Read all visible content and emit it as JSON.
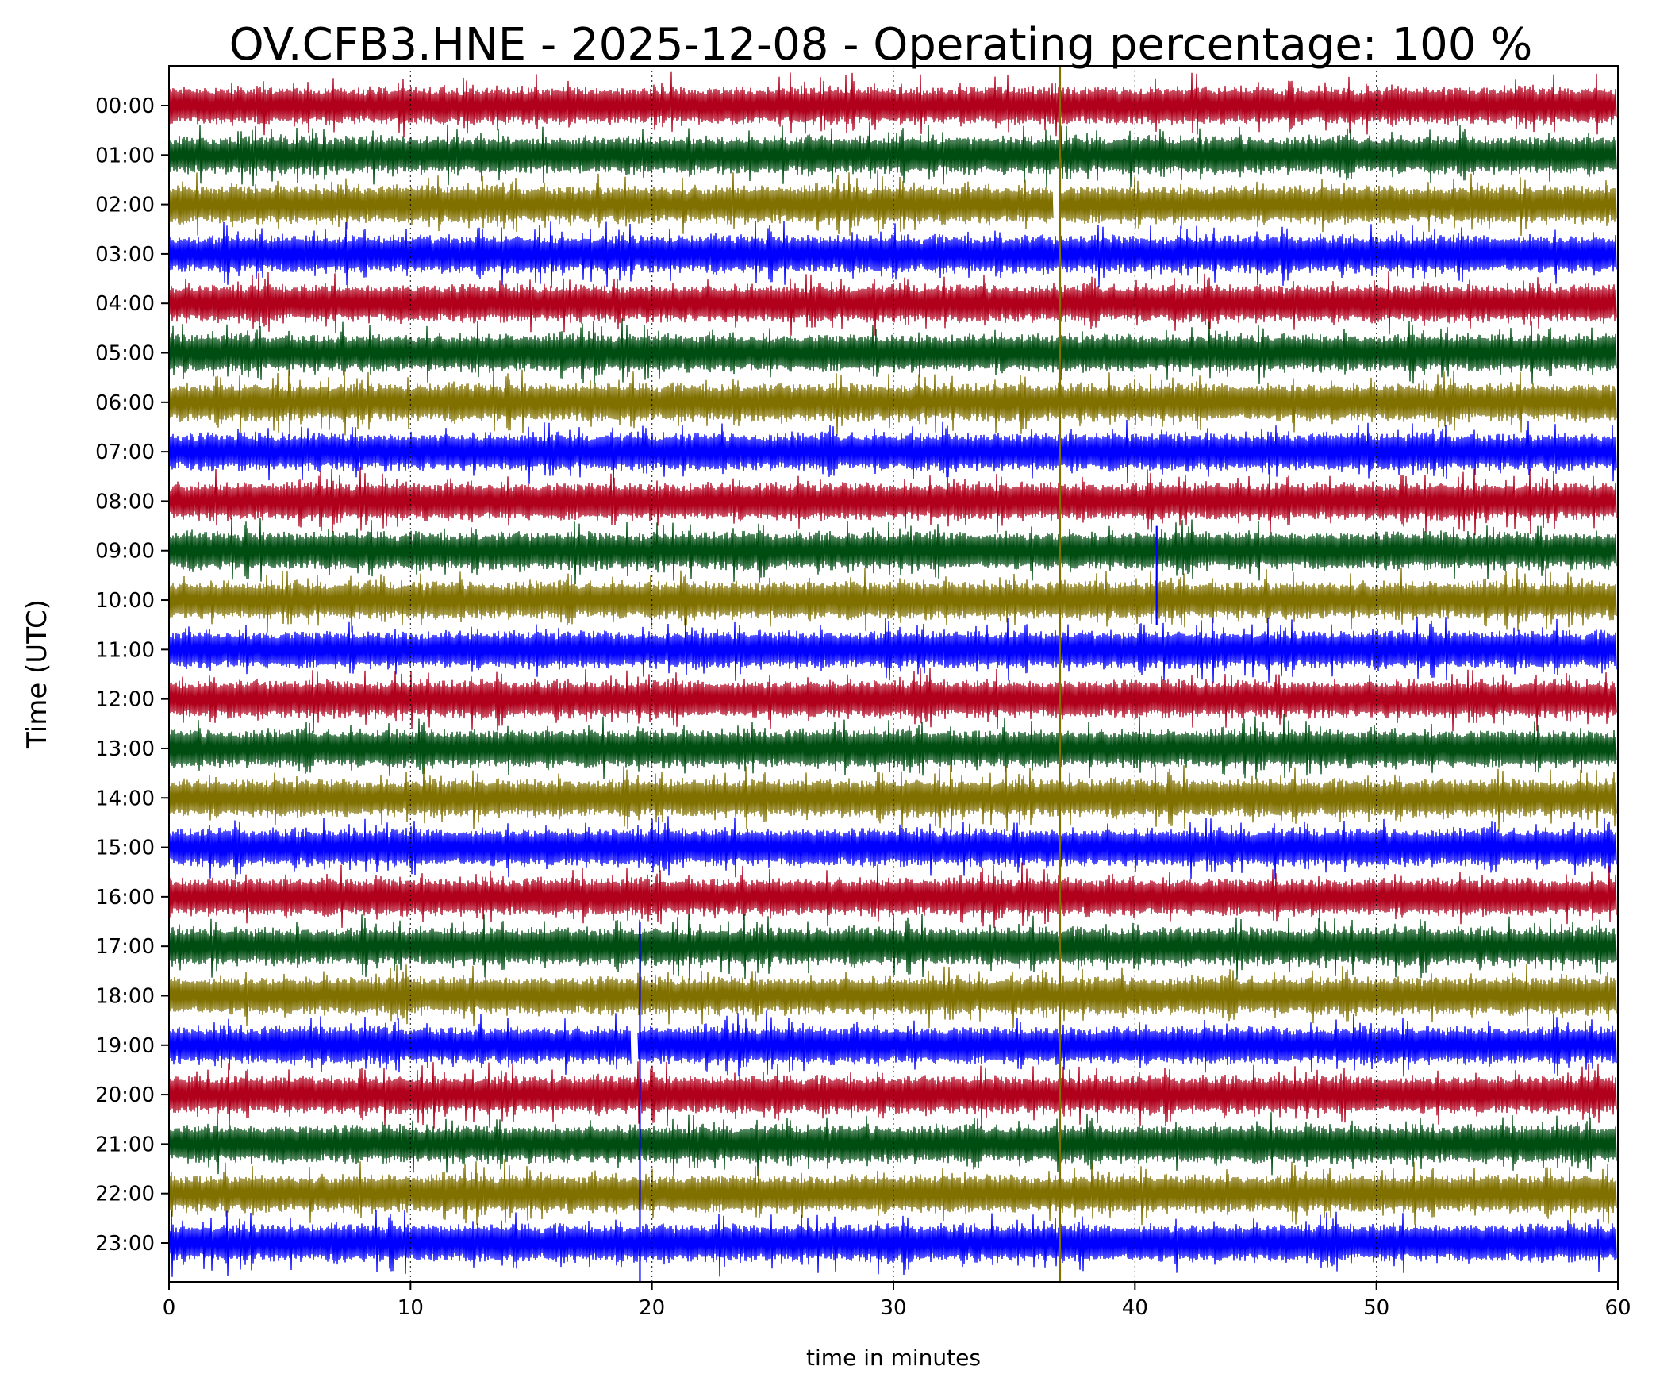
{
  "chart_data": {
    "type": "line",
    "title": "OV.CFB3.HNE - 2025-12-08 - Operating percentage: 100 %",
    "xlabel": "time in minutes",
    "ylabel": "Time (UTC)",
    "xlim": [
      0,
      60
    ],
    "x_ticks": [
      "0",
      "10",
      "20",
      "30",
      "40",
      "50",
      "60"
    ],
    "rows": [
      "00:00",
      "01:00",
      "02:00",
      "03:00",
      "04:00",
      "05:00",
      "06:00",
      "07:00",
      "08:00",
      "09:00",
      "10:00",
      "11:00",
      "12:00",
      "13:00",
      "14:00",
      "15:00",
      "16:00",
      "17:00",
      "18:00",
      "19:00",
      "20:00",
      "21:00",
      "22:00",
      "23:00"
    ],
    "trace_colors": [
      "#b0001c",
      "#004d12",
      "#807000",
      "#0000ff"
    ],
    "grid": "dotted vertical at x ticks",
    "events": [
      {
        "minute": 36.9,
        "from_row": "00:00",
        "to_row": "23:00",
        "color": "#807000"
      },
      {
        "minute": 40.9,
        "from_row": "09:00",
        "to_row": "10:00",
        "color": "#0000ff"
      },
      {
        "minute": 19.5,
        "from_row": "17:00",
        "to_row": "23:00",
        "color": "#0000ff"
      }
    ],
    "gaps": [
      {
        "row": "02:00",
        "start_minute": 36.6,
        "end_minute": 36.9
      },
      {
        "row": "19:00",
        "start_minute": 19.1,
        "end_minute": 19.4
      }
    ]
  }
}
